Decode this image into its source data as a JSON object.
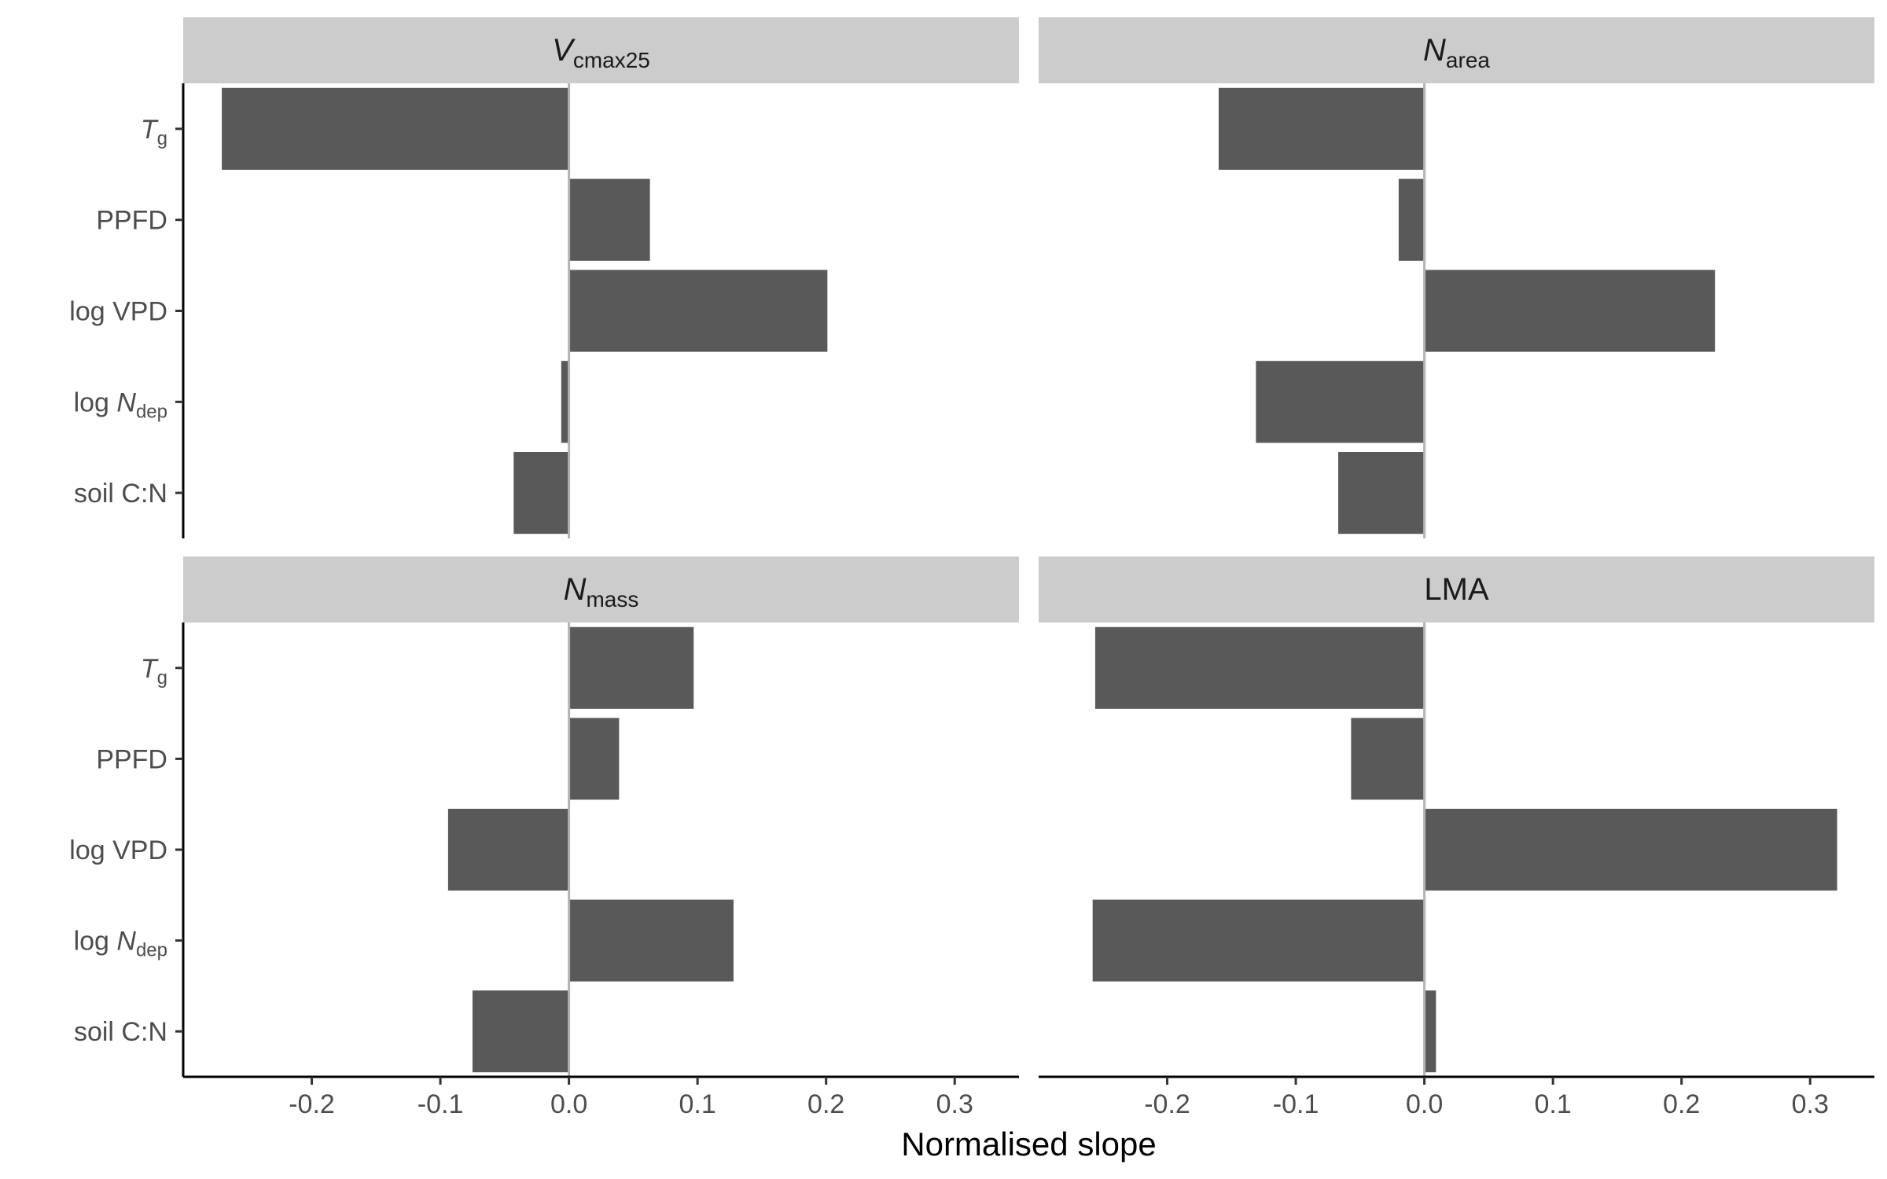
{
  "chart_data": {
    "type": "bar",
    "orientation": "horizontal",
    "xlabel": "Normalised slope",
    "ylabel": "",
    "xlim": [
      -0.3,
      0.35
    ],
    "x_ticks": [
      "-0.2",
      "-0.1",
      "0.0",
      "0.1",
      "0.2",
      "0.3"
    ],
    "categories": [
      {
        "main": "T",
        "sub": "g",
        "italic": true
      },
      {
        "main": "PPFD",
        "sub": "",
        "italic": false
      },
      {
        "main": "log VPD",
        "sub": "",
        "italic": false
      },
      {
        "main": "log ",
        "ital": "N",
        "sub": "dep",
        "italic": false
      },
      {
        "main": "soil C:N",
        "sub": "",
        "italic": false
      }
    ],
    "bar_color": "#595959",
    "strip_color": "#cccccc",
    "zero_line_color": "#b3b3b3",
    "grid": false,
    "panels": [
      {
        "title_main": "V",
        "title_sub": "cmax25",
        "title_italic": true,
        "values": [
          -0.27,
          0.063,
          0.201,
          -0.006,
          -0.043
        ]
      },
      {
        "title_main": "N",
        "title_sub": "area",
        "title_italic": true,
        "values": [
          -0.16,
          -0.02,
          0.226,
          -0.131,
          -0.067
        ]
      },
      {
        "title_main": "N",
        "title_sub": "mass",
        "title_italic": true,
        "values": [
          0.097,
          0.039,
          -0.094,
          0.128,
          -0.075
        ]
      },
      {
        "title_main": "LMA",
        "title_sub": "",
        "title_italic": false,
        "values": [
          -0.256,
          -0.057,
          0.321,
          -0.258,
          0.009
        ]
      }
    ]
  }
}
